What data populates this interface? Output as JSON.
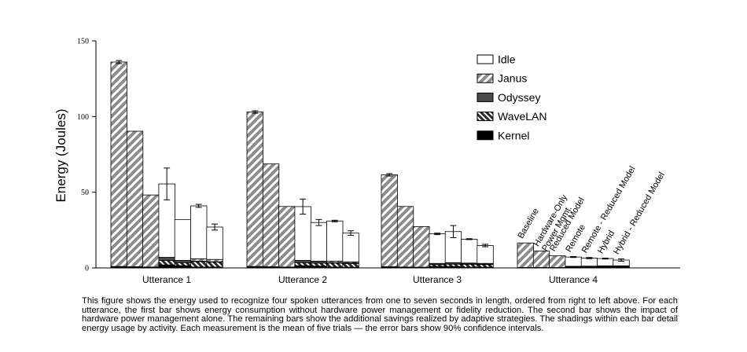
{
  "chart_data": {
    "type": "bar",
    "ylabel": "Energy (Joules)",
    "ylim": [
      0,
      150
    ],
    "yticks": [
      0,
      50,
      100,
      150
    ],
    "groups": [
      "Utterance 1",
      "Utterance 2",
      "Utterance 3",
      "Utterance 4"
    ],
    "bar_labels": [
      "Baseline",
      "Hardware-Only Power Mgmt.",
      "Reduced Model",
      "Remote",
      "Remote - Reduced Model",
      "Hybrid",
      "Hybrid - Reduced Model"
    ],
    "bar_label_lines": [
      [
        "Baseline"
      ],
      [
        "Hardware-Only",
        "Power Mgmt."
      ],
      [
        "Reduced Model"
      ],
      [
        "Remote"
      ],
      [
        "Remote - Reduced Model"
      ],
      [
        "Hybrid"
      ],
      [
        "Hybrid - Reduced Model"
      ]
    ],
    "legend": [
      {
        "name": "Idle",
        "pattern": "white"
      },
      {
        "name": "Janus",
        "pattern": "diag-light"
      },
      {
        "name": "Odyssey",
        "pattern": "dark"
      },
      {
        "name": "WaveLAN",
        "pattern": "diag-dark"
      },
      {
        "name": "Kernel",
        "pattern": "black"
      }
    ],
    "legend_position": "top-right",
    "components": [
      "Kernel",
      "WaveLAN",
      "Odyssey",
      "Janus",
      "Idle"
    ],
    "bars": [
      [
        {
          "Kernel": 1.0,
          "WaveLAN": 0,
          "Odyssey": 0,
          "Janus": 135.0,
          "Idle": 0,
          "err": 1.0
        },
        {
          "Kernel": 0.8,
          "WaveLAN": 0,
          "Odyssey": 0,
          "Janus": 89.5,
          "Idle": 0,
          "err": 0
        },
        {
          "Kernel": 0.6,
          "WaveLAN": 0,
          "Odyssey": 0,
          "Janus": 47.6,
          "Idle": 0,
          "err": 0
        },
        {
          "Kernel": 2.0,
          "WaveLAN": 3.0,
          "Odyssey": 2.0,
          "Janus": 0,
          "Idle": 48.5,
          "err": 10.5
        },
        {
          "Kernel": 1.5,
          "WaveLAN": 2.0,
          "Odyssey": 1.5,
          "Janus": 0,
          "Idle": 27.0,
          "err": 0
        },
        {
          "Kernel": 0.6,
          "WaveLAN": 3.6,
          "Odyssey": 0.3,
          "Janus": 1.5,
          "Idle": 35.0,
          "err": 1.0
        },
        {
          "Kernel": 0.6,
          "WaveLAN": 3.2,
          "Odyssey": 0.3,
          "Janus": 1.5,
          "Idle": 21.4,
          "err": 2.0
        }
      ],
      [
        {
          "Kernel": 1.0,
          "WaveLAN": 0,
          "Odyssey": 0,
          "Janus": 102.0,
          "Idle": 0,
          "err": 0.8
        },
        {
          "Kernel": 0.8,
          "WaveLAN": 0,
          "Odyssey": 0,
          "Janus": 67.9,
          "Idle": 0,
          "err": 0
        },
        {
          "Kernel": 0.6,
          "WaveLAN": 0,
          "Odyssey": 0,
          "Janus": 40.0,
          "Idle": 0,
          "err": 0
        },
        {
          "Kernel": 1.5,
          "WaveLAN": 2.0,
          "Odyssey": 1.5,
          "Janus": 0,
          "Idle": 35.5,
          "err": 5.0
        },
        {
          "Kernel": 1.2,
          "WaveLAN": 2.0,
          "Odyssey": 1.3,
          "Janus": 0,
          "Idle": 25.5,
          "err": 2.0
        },
        {
          "Kernel": 0.6,
          "WaveLAN": 2.6,
          "Odyssey": 0.3,
          "Janus": 1.0,
          "Idle": 26.5,
          "err": 0.5
        },
        {
          "Kernel": 0.5,
          "WaveLAN": 2.4,
          "Odyssey": 0.3,
          "Janus": 0.8,
          "Idle": 19.0,
          "err": 1.5
        }
      ],
      [
        {
          "Kernel": 0.8,
          "WaveLAN": 0,
          "Odyssey": 0,
          "Janus": 60.7,
          "Idle": 0,
          "err": 0.8
        },
        {
          "Kernel": 0.6,
          "WaveLAN": 0,
          "Odyssey": 0,
          "Janus": 40.0,
          "Idle": 0,
          "err": 0
        },
        {
          "Kernel": 0.5,
          "WaveLAN": 0,
          "Odyssey": 0,
          "Janus": 26.8,
          "Idle": 0,
          "err": 0
        },
        {
          "Kernel": 1.0,
          "WaveLAN": 1.2,
          "Odyssey": 0.8,
          "Janus": 0,
          "Idle": 19.5,
          "err": 0.5
        },
        {
          "Kernel": 1.0,
          "WaveLAN": 1.5,
          "Odyssey": 1.0,
          "Janus": 0,
          "Idle": 20.5,
          "err": 4.0
        },
        {
          "Kernel": 0.5,
          "WaveLAN": 2.0,
          "Odyssey": 0.2,
          "Janus": 0.5,
          "Idle": 15.8,
          "err": 0.3
        },
        {
          "Kernel": 0.5,
          "WaveLAN": 1.8,
          "Odyssey": 0.2,
          "Janus": 0.5,
          "Idle": 11.8,
          "err": 0.8
        }
      ],
      [
        {
          "Kernel": 0.3,
          "WaveLAN": 0,
          "Odyssey": 0,
          "Janus": 16.2,
          "Idle": 0,
          "err": 0
        },
        {
          "Kernel": 0.3,
          "WaveLAN": 0,
          "Odyssey": 0,
          "Janus": 10.9,
          "Idle": 0,
          "err": 0
        },
        {
          "Kernel": 0.3,
          "WaveLAN": 0,
          "Odyssey": 0,
          "Janus": 7.7,
          "Idle": 0,
          "err": 0
        },
        {
          "Kernel": 0.4,
          "WaveLAN": 0.4,
          "Odyssey": 0.3,
          "Janus": 0,
          "Idle": 6.1,
          "err": 0.3
        },
        {
          "Kernel": 0.4,
          "WaveLAN": 0.5,
          "Odyssey": 0.3,
          "Janus": 0,
          "Idle": 5.3,
          "err": 0.4
        },
        {
          "Kernel": 0.3,
          "WaveLAN": 0.6,
          "Odyssey": 0.2,
          "Janus": 0.3,
          "Idle": 4.8,
          "err": 0.3
        },
        {
          "Kernel": 0.3,
          "WaveLAN": 0.6,
          "Odyssey": 0.2,
          "Janus": 0.3,
          "Idle": 3.8,
          "err": 0.8
        }
      ]
    ]
  },
  "caption": "This figure shows the energy used to recognize four spoken utterances from one to seven seconds in length, ordered from right to left above. For each utterance, the first bar shows energy consumption without hardware power management or fidelity reduction. The second bar shows the impact of hardware power management alone.  The remaining bars show the additional savings realized by adaptive strategies. The shadings within each bar detail energy usage by activity. Each measurement is the mean of five trials — the error bars show 90% confidence intervals."
}
